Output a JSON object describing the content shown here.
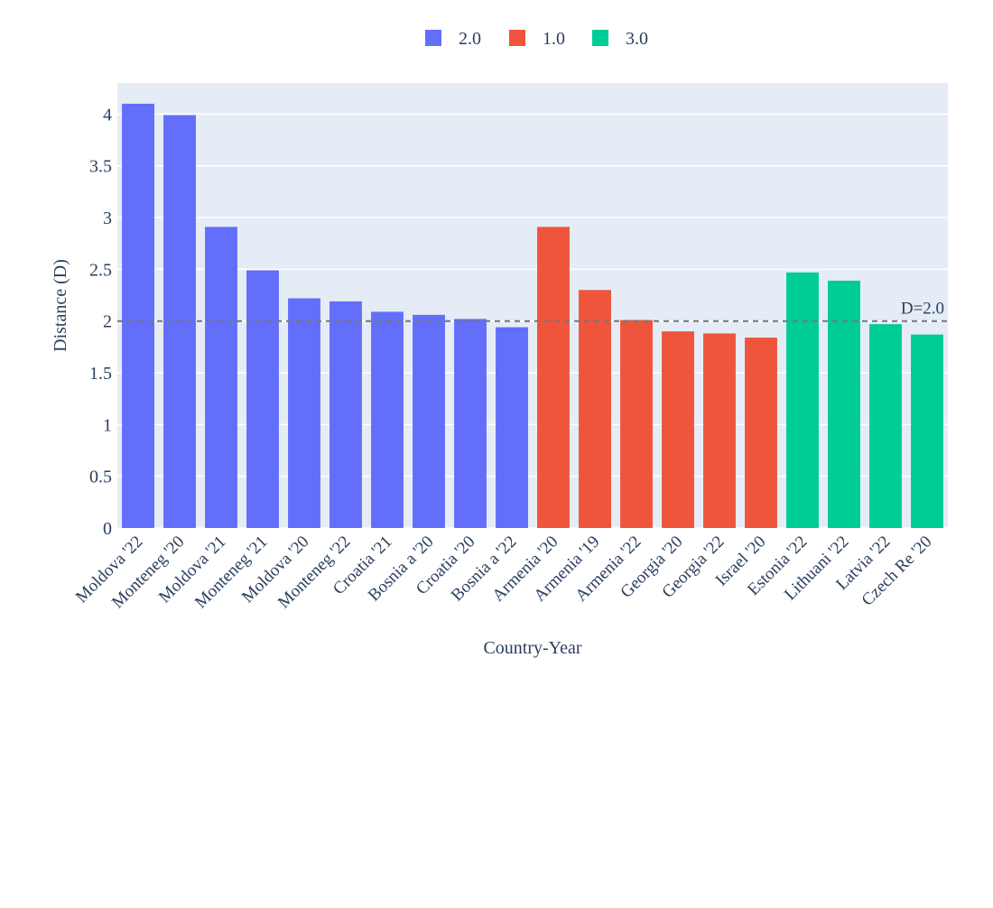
{
  "chart_data": {
    "type": "bar",
    "xlabel": "Country-Year",
    "ylabel": "Distance (D)",
    "ylim": [
      0,
      4.3
    ],
    "yticks": [
      0,
      0.5,
      1,
      1.5,
      2,
      2.5,
      3,
      3.5,
      4
    ],
    "ytick_labels": [
      "0",
      "0.5",
      "1",
      "1.5",
      "2",
      "2.5",
      "3",
      "3.5",
      "4"
    ],
    "grid": true,
    "legend_position": "top-center",
    "legend": [
      {
        "name": "2.0",
        "color": "#636efa"
      },
      {
        "name": "1.0",
        "color": "#ef553b"
      },
      {
        "name": "3.0",
        "color": "#00cc96"
      }
    ],
    "reference_line": {
      "y": 2.0,
      "label": "D=2.0",
      "style": "dashed",
      "color": "#777777"
    },
    "categories": [
      "Moldova '22",
      "Monteneg '20",
      "Moldova '21",
      "Monteneg '21",
      "Moldova '20",
      "Monteneg '22",
      "Croatia '21",
      "Bosnia a '20",
      "Croatia '20",
      "Bosnia a '22",
      "Armenia '20",
      "Armenia '19",
      "Armenia '22",
      "Georgia '20",
      "Georgia '22",
      "Israel '20",
      "Estonia '22",
      "Lithuani '22",
      "Latvia '22",
      "Czech Re '20"
    ],
    "values": [
      4.1,
      3.99,
      2.91,
      2.49,
      2.22,
      2.19,
      2.09,
      2.06,
      2.02,
      1.94,
      2.91,
      2.3,
      2.01,
      1.9,
      1.88,
      1.84,
      2.47,
      2.39,
      1.97,
      1.87
    ],
    "groups": [
      "2.0",
      "2.0",
      "2.0",
      "2.0",
      "2.0",
      "2.0",
      "2.0",
      "2.0",
      "2.0",
      "2.0",
      "1.0",
      "1.0",
      "1.0",
      "1.0",
      "1.0",
      "1.0",
      "3.0",
      "3.0",
      "3.0",
      "3.0"
    ]
  },
  "colors": {
    "plot_background": "#e5ecf6",
    "grid": "#ffffff",
    "text": "#2a3f5f"
  }
}
